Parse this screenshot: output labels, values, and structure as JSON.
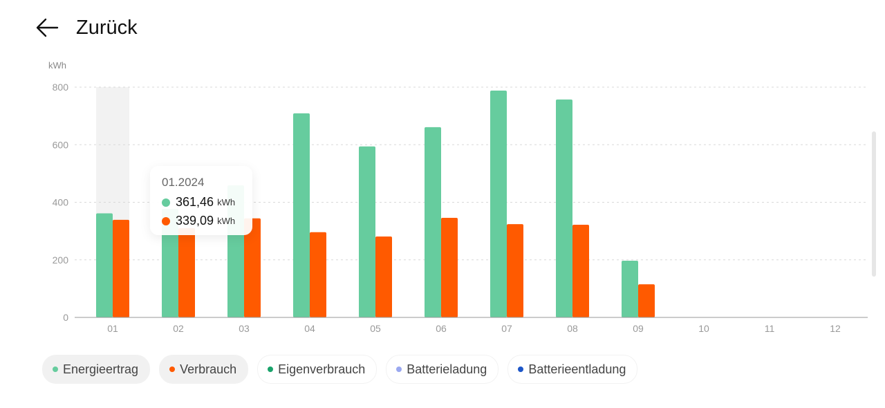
{
  "header": {
    "back_label": "Zurück",
    "back_icon": "arrow-left-icon"
  },
  "tooltip": {
    "title": "01.2024",
    "rows": [
      {
        "value": "361,46",
        "unit": "kWh",
        "color": "#66cc9e"
      },
      {
        "value": "339,09",
        "unit": "kWh",
        "color": "#ff5a00"
      }
    ]
  },
  "legend": [
    {
      "label": "Energieertrag",
      "color": "#66cc9e",
      "active": true
    },
    {
      "label": "Verbrauch",
      "color": "#ff5a00",
      "active": true
    },
    {
      "label": "Eigenverbrauch",
      "color": "#1aa36b",
      "active": false
    },
    {
      "label": "Batterieladung",
      "color": "#9aa8f0",
      "active": false
    },
    {
      "label": "Batterieentladung",
      "color": "#1d56c8",
      "active": false
    }
  ],
  "chart_data": {
    "type": "bar",
    "ylabel": "kWh",
    "ylim": [
      0,
      800
    ],
    "yticks": [
      0,
      200,
      400,
      600,
      800
    ],
    "grid": true,
    "categories": [
      "01",
      "02",
      "03",
      "04",
      "05",
      "06",
      "07",
      "08",
      "09",
      "10",
      "11",
      "12"
    ],
    "highlighted_category": "01",
    "series": [
      {
        "name": "Energieertrag",
        "color": "#66cc9e",
        "values": [
          361.46,
          377,
          459,
          709,
          594,
          661,
          788,
          757,
          197,
          0,
          0,
          0
        ]
      },
      {
        "name": "Verbrauch",
        "color": "#ff5a00",
        "values": [
          339.09,
          310,
          344,
          296,
          281,
          346,
          324,
          322,
          115,
          0,
          0,
          0
        ]
      }
    ]
  }
}
